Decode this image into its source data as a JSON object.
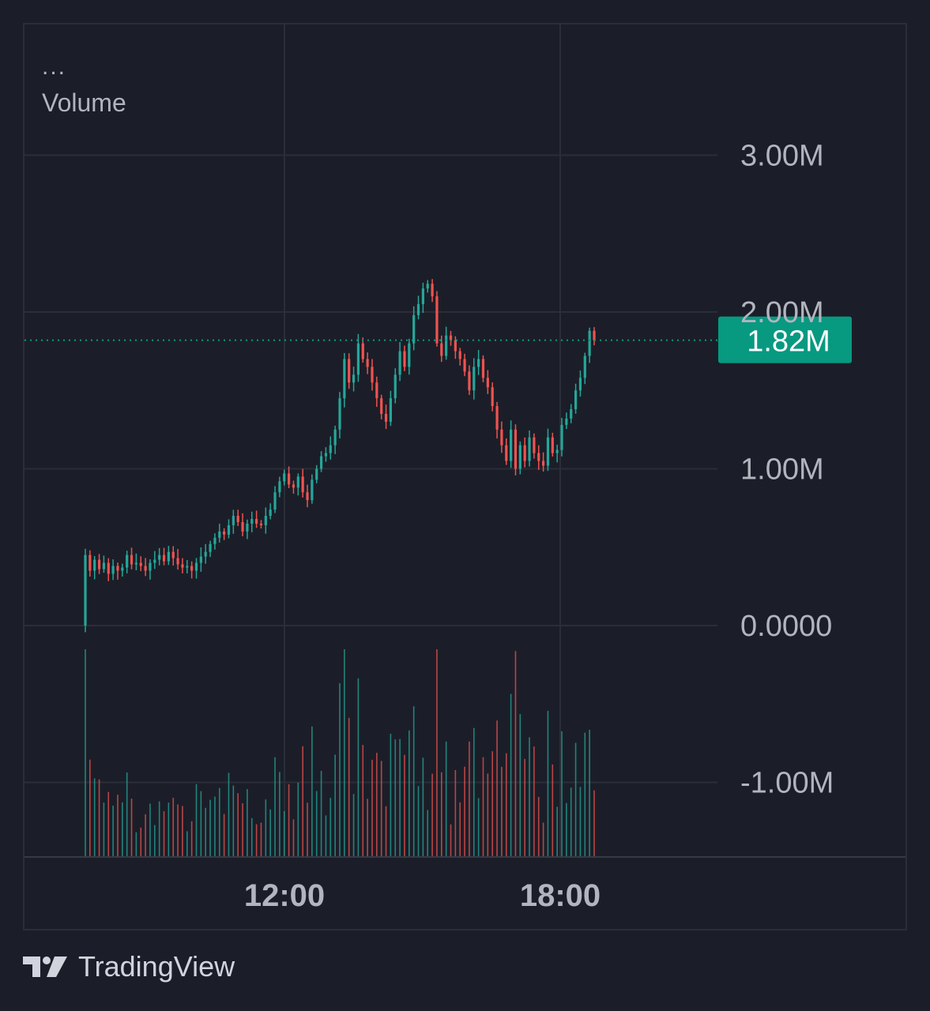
{
  "header": {
    "menu_dots": "...",
    "indicator_label": "Volume"
  },
  "footer": {
    "logo_icon": "tradingview-logo-icon",
    "brand": "TradingView"
  },
  "colors": {
    "background": "#1b1e28",
    "grid": "#2a2e39",
    "up": "#26a69a",
    "down": "#ef5350",
    "last_price_badge": "#089981",
    "axis_text": "#b2b5be"
  },
  "chart_data": {
    "type": "candlestick",
    "title": "",
    "ylabel": "",
    "ylim": [
      -1500000,
      3500000
    ],
    "yticks": [
      {
        "value": 3000000,
        "label": "3.00M"
      },
      {
        "value": 2000000,
        "label": "2.00M"
      },
      {
        "value": 1000000,
        "label": "1.00M"
      },
      {
        "value": 0,
        "label": "0.0000"
      },
      {
        "value": -1000000,
        "label": "-1.00M"
      }
    ],
    "xticks": [
      {
        "minutes": 720,
        "label": "12:00"
      },
      {
        "minutes": 1080,
        "label": "18:00"
      }
    ],
    "xlim_minutes": [
      535,
      1200
    ],
    "last_value": 1820000,
    "last_value_label": "1.82M",
    "close_series": [
      0.45,
      0.35,
      0.42,
      0.36,
      0.4,
      0.33,
      0.38,
      0.35,
      0.37,
      0.45,
      0.39,
      0.4,
      0.38,
      0.35,
      0.4,
      0.42,
      0.45,
      0.41,
      0.47,
      0.43,
      0.39,
      0.37,
      0.38,
      0.35,
      0.4,
      0.44,
      0.47,
      0.52,
      0.56,
      0.6,
      0.58,
      0.64,
      0.7,
      0.66,
      0.6,
      0.65,
      0.68,
      0.65,
      0.64,
      0.7,
      0.74,
      0.85,
      0.92,
      0.97,
      0.9,
      0.88,
      0.95,
      0.85,
      0.8,
      0.93,
      1.0,
      1.08,
      1.1,
      1.15,
      1.25,
      1.45,
      1.7,
      1.55,
      1.6,
      1.8,
      1.7,
      1.65,
      1.55,
      1.45,
      1.35,
      1.3,
      1.45,
      1.6,
      1.75,
      1.65,
      1.8,
      1.98,
      2.05,
      2.15,
      2.18,
      2.1,
      1.8,
      1.72,
      1.85,
      1.82,
      1.75,
      1.7,
      1.62,
      1.5,
      1.65,
      1.7,
      1.58,
      1.52,
      1.4,
      1.25,
      1.15,
      1.05,
      1.25,
      1.0,
      1.15,
      1.05,
      1.2,
      1.1,
      1.05,
      1.02,
      1.2,
      1.1,
      1.12,
      1.28,
      1.32,
      1.38,
      1.5,
      1.58,
      1.72,
      1.88,
      1.82
    ]
  }
}
